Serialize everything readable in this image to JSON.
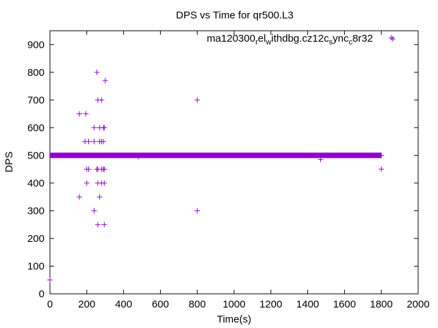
{
  "chart_data": {
    "type": "scatter",
    "title": "DPS vs Time for qr500.L3",
    "xlabel": "Time(s)",
    "ylabel": "DPS",
    "xlim": [
      0,
      2000
    ],
    "ylim": [
      0,
      950
    ],
    "xticks": [
      0,
      200,
      400,
      600,
      800,
      1000,
      1200,
      1400,
      1600,
      1800,
      2000
    ],
    "yticks": [
      0,
      100,
      200,
      300,
      400,
      500,
      600,
      700,
      800,
      900
    ],
    "grid": false,
    "legend_position": "top-right",
    "series": [
      {
        "legend": {
          "parts": [
            {
              "t": "ma120300",
              "sub": false
            },
            {
              "t": "r",
              "sub": true
            },
            {
              "t": "el",
              "sub": false
            },
            {
              "t": "w",
              "sub": true
            },
            {
              "t": "ithdbg.cz12c",
              "sub": false
            },
            {
              "t": "s",
              "sub": true
            },
            {
              "t": "ync",
              "sub": false
            },
            {
              "t": "c",
              "sub": true
            },
            {
              "t": "8r32",
              "sub": false
            }
          ]
        },
        "color": "#9400d3",
        "marker": "+",
        "baseline": {
          "y": 500,
          "x_start": 0,
          "x_end": 1800
        },
        "points": [
          [
            0,
            50
          ],
          [
            160,
            650
          ],
          [
            160,
            350
          ],
          [
            190,
            550
          ],
          [
            195,
            650
          ],
          [
            200,
            450
          ],
          [
            200,
            400
          ],
          [
            210,
            450
          ],
          [
            210,
            550
          ],
          [
            240,
            600
          ],
          [
            240,
            550
          ],
          [
            240,
            300
          ],
          [
            255,
            800
          ],
          [
            255,
            450
          ],
          [
            260,
            450
          ],
          [
            260,
            700
          ],
          [
            260,
            400
          ],
          [
            260,
            250
          ],
          [
            270,
            600
          ],
          [
            270,
            550
          ],
          [
            270,
            350
          ],
          [
            280,
            700
          ],
          [
            280,
            550
          ],
          [
            280,
            450
          ],
          [
            280,
            400
          ],
          [
            290,
            600
          ],
          [
            290,
            550
          ],
          [
            290,
            450
          ],
          [
            295,
            600
          ],
          [
            295,
            450
          ],
          [
            295,
            400
          ],
          [
            295,
            250
          ],
          [
            300,
            770
          ],
          [
            480,
            495
          ],
          [
            800,
            700
          ],
          [
            800,
            300
          ],
          [
            1470,
            485
          ],
          [
            1800,
            500
          ],
          [
            1800,
            450
          ],
          [
            1855,
            925
          ]
        ]
      }
    ]
  }
}
